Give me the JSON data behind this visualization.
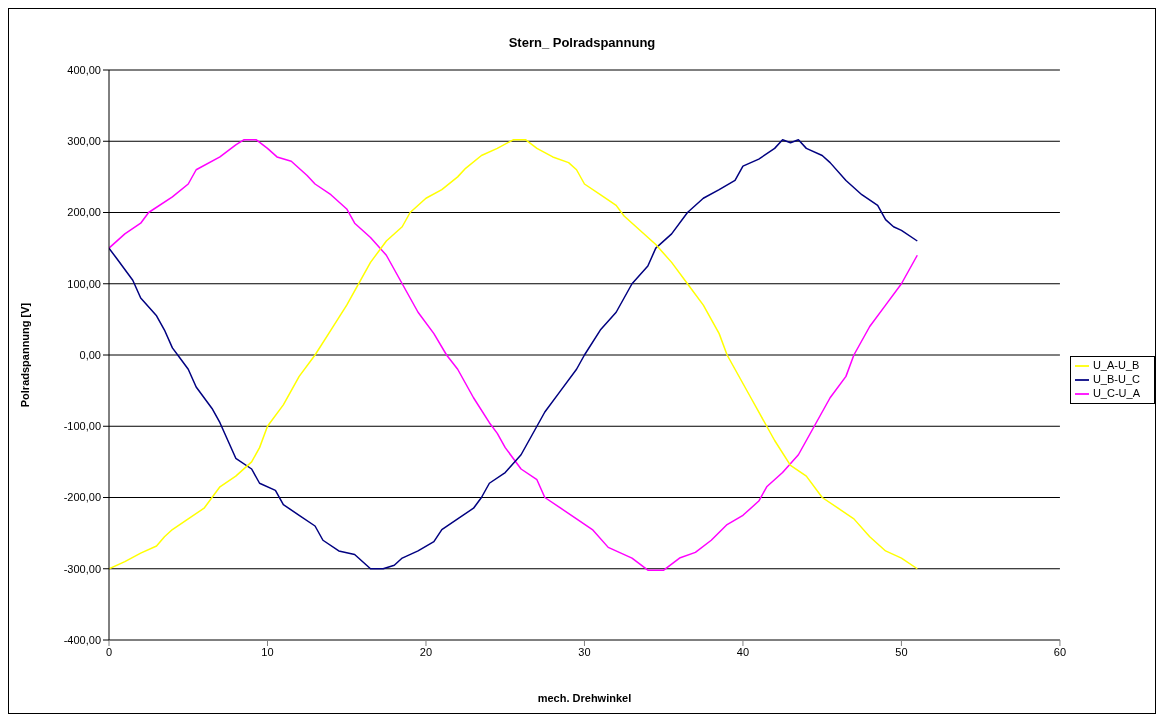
{
  "chart_data": {
    "type": "line",
    "title": "Stern_ Polradspannung",
    "xlabel": "mech. Drehwinkel",
    "ylabel": "Polradspannung [V]",
    "xlim": [
      0,
      60
    ],
    "xticks": [
      0,
      10,
      20,
      30,
      40,
      50,
      60
    ],
    "ylim": [
      -400,
      400
    ],
    "yticks": [
      {
        "value": -400,
        "label": "-400,00"
      },
      {
        "value": -300,
        "label": "-300,00"
      },
      {
        "value": -200,
        "label": "-200,00"
      },
      {
        "value": -100,
        "label": "-100,00"
      },
      {
        "value": 0,
        "label": "0,00"
      },
      {
        "value": 100,
        "label": "100,00"
      },
      {
        "value": 200,
        "label": "200,00"
      },
      {
        "value": 300,
        "label": "300,00"
      },
      {
        "value": 400,
        "label": "400,00"
      }
    ],
    "grid": "y",
    "legend": "right",
    "marker": "none",
    "line_style": "solid",
    "series": [
      {
        "name": "U_C-U_A",
        "color": "#ff00ff",
        "x": [
          0,
          1,
          2,
          2.5,
          4,
          5,
          5.5,
          7,
          8,
          8.5,
          9.3,
          10,
          10.6,
          11.5,
          12.5,
          13,
          14,
          15,
          15.5,
          16.5,
          17.5,
          18,
          19,
          19.5,
          20.5,
          21.3,
          22,
          23,
          24,
          24.5,
          25,
          26,
          27,
          27.5,
          28.5,
          29.5,
          30.5,
          31.5,
          33,
          34,
          35,
          36,
          37,
          38,
          39,
          40,
          41,
          41.5,
          42.5,
          43.5,
          44.5,
          45.5,
          46.5,
          47,
          48,
          49,
          50,
          51
        ],
        "values": [
          150,
          170,
          185,
          200,
          222,
          240,
          260,
          278,
          295,
          302,
          302,
          290,
          278,
          272,
          252,
          240,
          225,
          205,
          185,
          165,
          140,
          120,
          80,
          60,
          30,
          0,
          -20,
          -60,
          -95,
          -110,
          -130,
          -160,
          -175,
          -200,
          -215,
          -230,
          -245,
          -270,
          -285,
          -302,
          -302,
          -285,
          -277,
          -260,
          -238,
          -225,
          -205,
          -185,
          -165,
          -140,
          -100,
          -60,
          -30,
          0,
          40,
          70,
          100,
          140
        ]
      },
      {
        "name": "U_B-U_C",
        "color": "#000080",
        "x": [
          0,
          0.5,
          1.5,
          2,
          3,
          3.5,
          4,
          4.5,
          5,
          5.5,
          6.5,
          7,
          7.5,
          8,
          9,
          9.5,
          10.5,
          11,
          12,
          13,
          13.5,
          14.5,
          15.5,
          16.5,
          17.3,
          18,
          18.5,
          19.5,
          20.5,
          21,
          22,
          23,
          23.5,
          24,
          25,
          26,
          27,
          27.5,
          28.5,
          29.5,
          30,
          31,
          32,
          33,
          34,
          34.5,
          35.5,
          36.5,
          37.5,
          38.5,
          39.5,
          40,
          41,
          42,
          42.5,
          43,
          43.5,
          44,
          45,
          45.5,
          46.5,
          47.5,
          48.5,
          49,
          49.5,
          50,
          51
        ],
        "values": [
          150,
          135,
          105,
          80,
          55,
          35,
          10,
          -5,
          -20,
          -45,
          -75,
          -95,
          -120,
          -145,
          -160,
          -180,
          -190,
          -210,
          -225,
          -240,
          -260,
          -275,
          -280,
          -300,
          -300,
          -295,
          -285,
          -275,
          -262,
          -245,
          -230,
          -215,
          -200,
          -180,
          -165,
          -140,
          -100,
          -80,
          -50,
          -20,
          0,
          35,
          60,
          100,
          125,
          150,
          170,
          200,
          220,
          232,
          245,
          265,
          275,
          290,
          302,
          298,
          302,
          290,
          280,
          270,
          245,
          225,
          210,
          190,
          180,
          175,
          160
        ]
      },
      {
        "name": "U_A-U_B",
        "color": "#ffff00",
        "x": [
          0,
          1,
          2,
          3,
          3.5,
          4,
          5,
          6,
          6.5,
          7,
          8,
          9,
          9.5,
          10,
          11,
          11.5,
          12,
          13,
          14,
          15,
          16,
          16.5,
          17.5,
          18.5,
          19,
          20,
          21,
          22,
          22.5,
          23.5,
          24.5,
          25.5,
          26.3,
          27,
          28,
          29,
          29.5,
          30,
          31,
          32,
          32.5,
          33.5,
          34.5,
          35.5,
          36.5,
          37.5,
          38.5,
          39,
          39.5,
          40.5,
          41.5,
          42,
          43,
          44,
          45,
          46,
          47,
          48,
          49,
          50,
          51
        ],
        "values": [
          -300,
          -290,
          -278,
          -268,
          -255,
          -245,
          -230,
          -215,
          -200,
          -185,
          -170,
          -150,
          -130,
          -100,
          -70,
          -50,
          -30,
          0,
          35,
          70,
          110,
          130,
          160,
          180,
          200,
          220,
          232,
          250,
          262,
          280,
          290,
          302,
          302,
          290,
          278,
          270,
          260,
          240,
          225,
          210,
          195,
          175,
          155,
          130,
          100,
          70,
          30,
          0,
          -20,
          -60,
          -100,
          -120,
          -155,
          -170,
          -200,
          -215,
          -230,
          -255,
          -275,
          -285,
          -300
        ]
      }
    ]
  }
}
